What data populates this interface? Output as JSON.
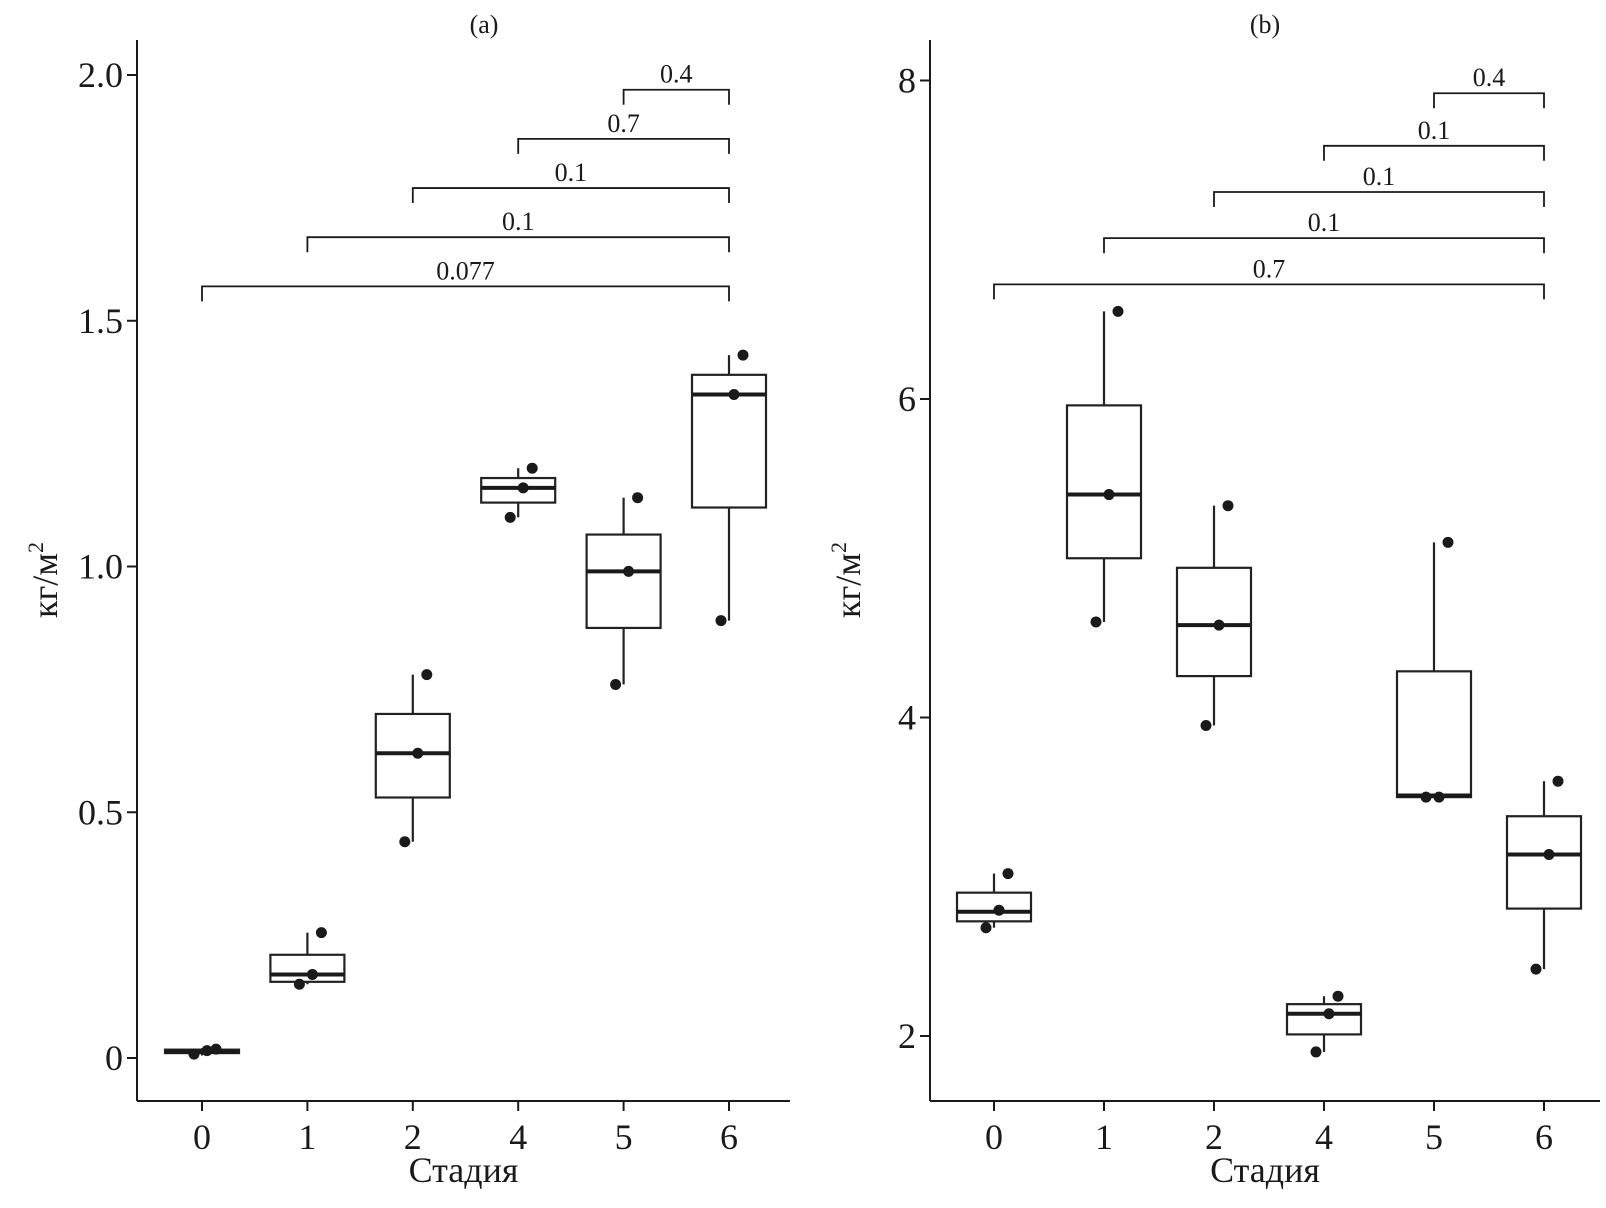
{
  "chart_data": [
    {
      "type": "box",
      "title": "(a)",
      "xlabel": "Стадия",
      "ylabel": "кг/м",
      "ylabel_sup": "2",
      "categories": [
        "0",
        "1",
        "2",
        "4",
        "5",
        "6"
      ],
      "ylim": [
        -0.09,
        2.07
      ],
      "yticks": [
        0,
        0.5,
        1.0,
        1.5,
        2.0
      ],
      "ytick_labels": [
        "0",
        "0.5",
        "1.0",
        "1.5",
        "2.0"
      ],
      "boxes": [
        {
          "category": "0",
          "whisker_low": 0.005,
          "q1": 0.01,
          "median": 0.013,
          "q3": 0.017,
          "whisker_high": 0.02
        },
        {
          "category": "1",
          "whisker_low": 0.15,
          "q1": 0.155,
          "median": 0.17,
          "q3": 0.21,
          "whisker_high": 0.255
        },
        {
          "category": "2",
          "whisker_low": 0.44,
          "q1": 0.53,
          "median": 0.62,
          "q3": 0.7,
          "whisker_high": 0.78
        },
        {
          "category": "4",
          "whisker_low": 1.1,
          "q1": 1.13,
          "median": 1.16,
          "q3": 1.18,
          "whisker_high": 1.2
        },
        {
          "category": "5",
          "whisker_low": 0.76,
          "q1": 0.875,
          "median": 0.99,
          "q3": 1.065,
          "whisker_high": 1.14
        },
        {
          "category": "6",
          "whisker_low": 0.89,
          "q1": 1.12,
          "median": 1.35,
          "q3": 1.39,
          "whisker_high": 1.43
        }
      ],
      "points": [
        {
          "category": "0",
          "values": [
            0.008,
            0.015,
            0.018
          ]
        },
        {
          "category": "1",
          "values": [
            0.15,
            0.17,
            0.255
          ]
        },
        {
          "category": "2",
          "values": [
            0.44,
            0.62,
            0.78
          ]
        },
        {
          "category": "4",
          "values": [
            1.1,
            1.16,
            1.2
          ]
        },
        {
          "category": "5",
          "values": [
            0.76,
            0.99,
            1.14
          ]
        },
        {
          "category": "6",
          "values": [
            0.89,
            1.35,
            1.43
          ]
        }
      ],
      "comparisons": [
        {
          "from": "0",
          "to": "6",
          "label": "0.077",
          "level": 1.57
        },
        {
          "from": "1",
          "to": "6",
          "label": "0.1",
          "level": 1.67
        },
        {
          "from": "2",
          "to": "6",
          "label": "0.1",
          "level": 1.77
        },
        {
          "from": "4",
          "to": "6",
          "label": "0.7",
          "level": 1.87
        },
        {
          "from": "5",
          "to": "6",
          "label": "0.4",
          "level": 1.97
        }
      ]
    },
    {
      "type": "box",
      "title": "(b)",
      "xlabel": "Стадия",
      "ylabel": "кг/м",
      "ylabel_sup": "2",
      "categories": [
        "0",
        "1",
        "2",
        "4",
        "5",
        "6"
      ],
      "ylim": [
        1.6,
        8.2
      ],
      "yticks": [
        2,
        4,
        6,
        8
      ],
      "ytick_labels": [
        "2",
        "4",
        "6",
        "8"
      ],
      "boxes": [
        {
          "category": "0",
          "whisker_low": 2.68,
          "q1": 2.72,
          "median": 2.78,
          "q3": 2.9,
          "whisker_high": 3.02
        },
        {
          "category": "1",
          "whisker_low": 4.6,
          "q1": 5.0,
          "median": 5.4,
          "q3": 5.96,
          "whisker_high": 6.55
        },
        {
          "category": "2",
          "whisker_low": 3.95,
          "q1": 4.26,
          "median": 4.58,
          "q3": 4.94,
          "whisker_high": 5.33
        },
        {
          "category": "4",
          "whisker_low": 1.9,
          "q1": 2.01,
          "median": 2.14,
          "q3": 2.2,
          "whisker_high": 2.25
        },
        {
          "category": "5",
          "whisker_low": 3.5,
          "q1": 3.5,
          "median": 3.51,
          "q3": 4.29,
          "whisker_high": 5.1
        },
        {
          "category": "6",
          "whisker_low": 2.42,
          "q1": 2.8,
          "median": 3.14,
          "q3": 3.38,
          "whisker_high": 3.6
        }
      ],
      "points": [
        {
          "category": "0",
          "values": [
            2.68,
            2.79,
            3.02
          ]
        },
        {
          "category": "1",
          "values": [
            4.6,
            5.4,
            6.55
          ]
        },
        {
          "category": "2",
          "values": [
            3.95,
            4.58,
            5.33
          ]
        },
        {
          "category": "4",
          "values": [
            1.9,
            2.14,
            2.25
          ]
        },
        {
          "category": "5",
          "values": [
            3.5,
            3.5,
            5.1
          ]
        },
        {
          "category": "6",
          "values": [
            2.42,
            3.14,
            3.6
          ]
        }
      ],
      "comparisons": [
        {
          "from": "0",
          "to": "6",
          "label": "0.7",
          "level": 6.72
        },
        {
          "from": "1",
          "to": "6",
          "label": "0.1",
          "level": 7.01
        },
        {
          "from": "2",
          "to": "6",
          "label": "0.1",
          "level": 7.3
        },
        {
          "from": "4",
          "to": "6",
          "label": "0.1",
          "level": 7.59
        },
        {
          "from": "5",
          "to": "6",
          "label": "0.4",
          "level": 7.92
        }
      ]
    }
  ]
}
